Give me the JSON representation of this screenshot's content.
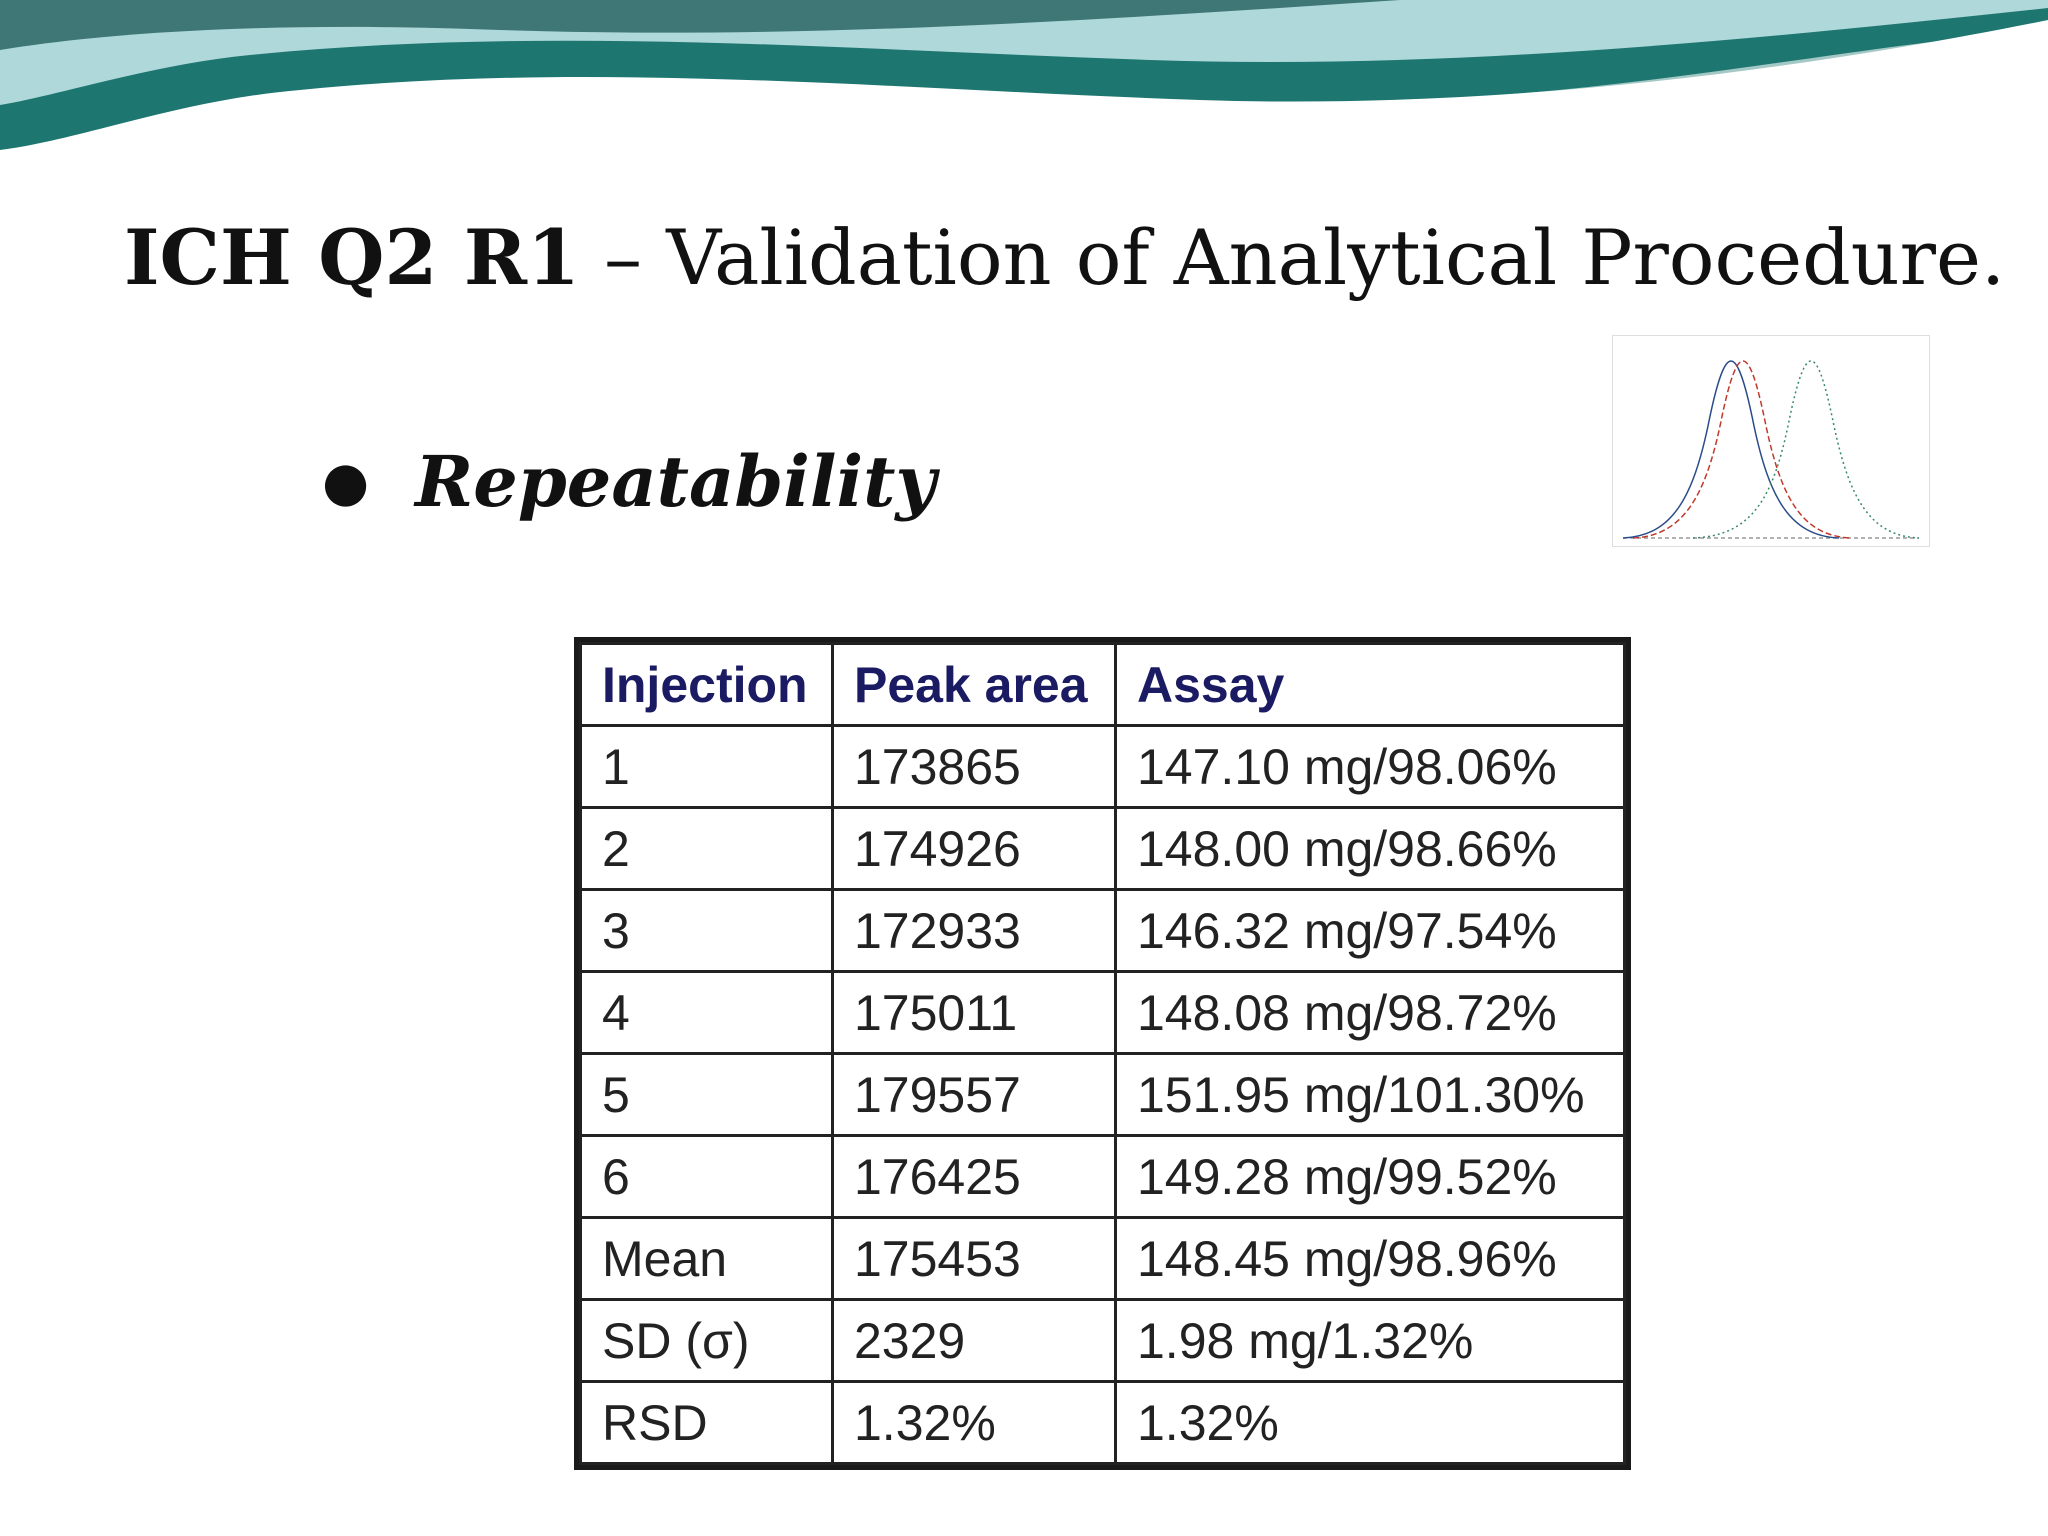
{
  "slide": {
    "title_bold": "ICH Q2 R1",
    "title_rest": " – Validation of Analytical Procedure.",
    "bullet": "Repeatability"
  },
  "table": {
    "headers": [
      "Injection",
      "Peak area",
      "Assay"
    ],
    "rows": [
      [
        "1",
        "173865",
        "147.10 mg/98.06%"
      ],
      [
        "2",
        "174926",
        "148.00 mg/98.66%"
      ],
      [
        "3",
        "172933",
        "146.32 mg/97.54%"
      ],
      [
        "4",
        "175011",
        "148.08 mg/98.72%"
      ],
      [
        "5",
        "179557",
        "151.95 mg/101.30%"
      ],
      [
        "6",
        "176425",
        "149.28 mg/99.52%"
      ],
      [
        "Mean",
        "175453",
        "148.45 mg/98.96%"
      ],
      [
        "SD (σ)",
        "2329",
        "1.98 mg/1.32%"
      ],
      [
        "RSD",
        "1.32%",
        "1.32%"
      ]
    ]
  },
  "colors": {
    "header_text": "#1b1b63",
    "banner_teal": "#1f7a7a",
    "banner_light": "#bfe3e6"
  }
}
